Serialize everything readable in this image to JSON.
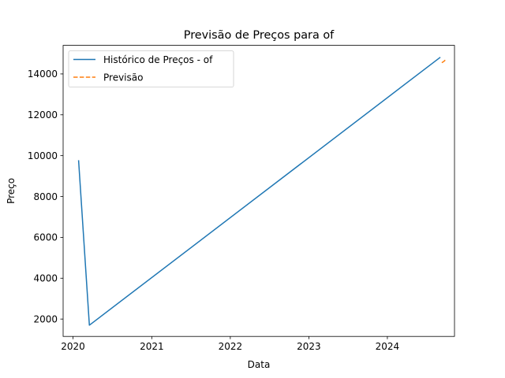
{
  "chart_data": {
    "type": "line",
    "title": "Previsão de Preços para of",
    "xlabel": "Data",
    "ylabel": "Preço",
    "x_axis_type": "date",
    "xlim": [
      "2019-11-16",
      "2024-11-08"
    ],
    "ylim": [
      1150,
      15400
    ],
    "x_ticks": [
      {
        "date": "2020-01-01",
        "label": "2020"
      },
      {
        "date": "2021-01-01",
        "label": "2021"
      },
      {
        "date": "2022-01-01",
        "label": "2022"
      },
      {
        "date": "2023-01-01",
        "label": "2023"
      },
      {
        "date": "2024-01-01",
        "label": "2024"
      }
    ],
    "y_ticks": [
      2000,
      4000,
      6000,
      8000,
      10000,
      12000,
      14000
    ],
    "grid": false,
    "legend": {
      "placement": "top-left"
    },
    "series": [
      {
        "name": "Histórico de Preços - of",
        "color": "#1f77b4",
        "style": "solid",
        "points": [
          {
            "x": "2020-01-27",
            "y": 9750
          },
          {
            "x": "2020-03-17",
            "y": 1700
          },
          {
            "x": "2024-09-01",
            "y": 14800
          }
        ]
      },
      {
        "name": "Previsão",
        "color": "#ff7f0e",
        "style": "dashed",
        "points": [
          {
            "x": "2024-09-10",
            "y": 14550
          },
          {
            "x": "2024-09-20",
            "y": 14620
          },
          {
            "x": "2024-09-30",
            "y": 14720
          }
        ]
      }
    ]
  }
}
